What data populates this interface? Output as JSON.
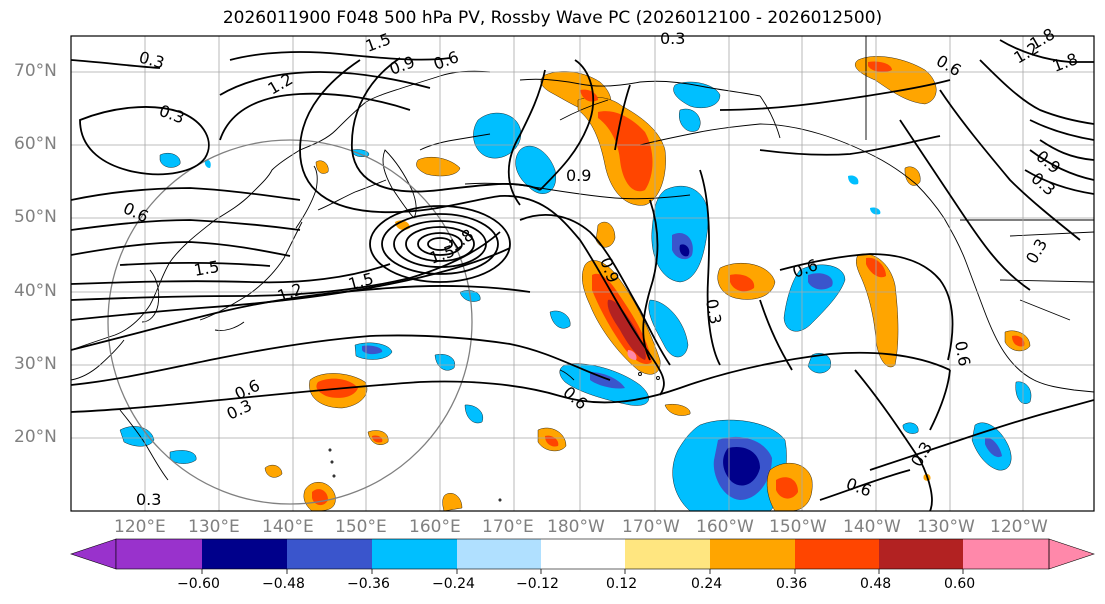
{
  "title": "2026011900 F048 500 hPa PV, Rossby Wave PC (2026012100 - 2026012500)",
  "lat_labels": [
    "70°N",
    "60°N",
    "50°N",
    "40°N",
    "30°N",
    "20°N"
  ],
  "lon_labels": [
    "120°E",
    "130°E",
    "140°E",
    "150°E",
    "160°E",
    "170°E",
    "180°W",
    "170°W",
    "160°W",
    "150°W",
    "140°W",
    "130°W",
    "120°W"
  ],
  "contour_labels": [
    "0.3",
    "0.3",
    "0.3",
    "0.3",
    "0.3",
    "0.3",
    "0.3",
    "0.3",
    "0.3",
    "0.6",
    "0.6",
    "0.6",
    "0.6",
    "0.6",
    "0.6",
    "0.6",
    "0.6",
    "0.9",
    "0.9",
    "0.9",
    "0.9",
    "1.2",
    "1.2",
    "1.2",
    "1.5",
    "1.5",
    "1.5",
    "1.5",
    "1.8",
    "1.8",
    "1.8"
  ],
  "colorbar": {
    "ticks": [
      "−0.60",
      "−0.48",
      "−0.36",
      "−0.24",
      "−0.12",
      "0.12",
      "0.24",
      "0.36",
      "0.48",
      "0.60"
    ],
    "colors": [
      "#9932cc",
      "#00008b",
      "#3a55cc",
      "#00bfff",
      "#b0e0ff",
      "#ffffff",
      "#ffe680",
      "#ffa500",
      "#ff4500",
      "#b22222",
      "#ff88aa"
    ]
  }
}
